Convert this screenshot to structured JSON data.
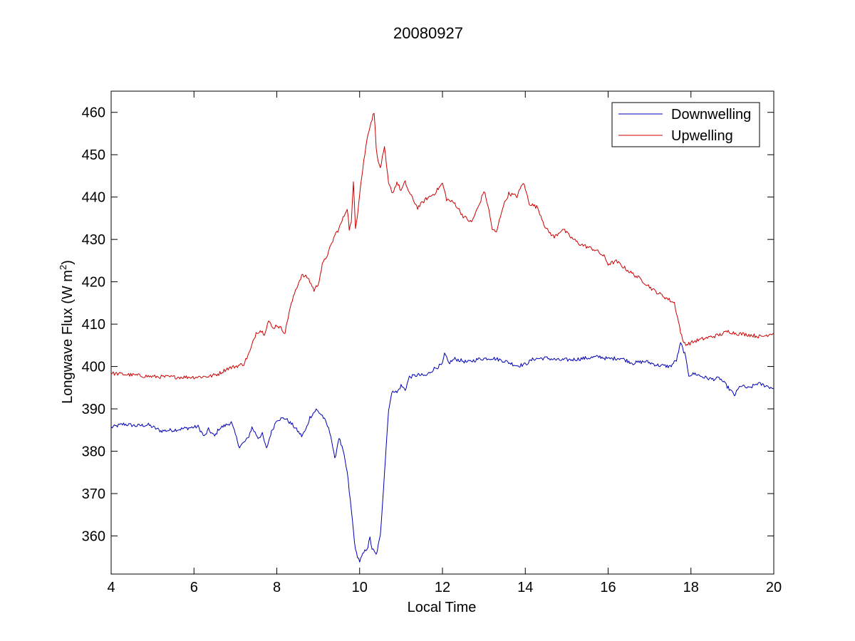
{
  "chart_data": {
    "type": "line",
    "title": "20080927",
    "xlabel": "Local Time",
    "ylabel": "Longwave Flux (W m",
    "ylabel_superscript": "2",
    "ylabel_suffix": ")",
    "xlim": [
      4,
      20
    ],
    "ylim": [
      351,
      465
    ],
    "xticks": [
      4,
      6,
      8,
      10,
      12,
      14,
      16,
      18,
      20
    ],
    "yticks": [
      360,
      370,
      380,
      390,
      400,
      410,
      420,
      430,
      440,
      450,
      460
    ],
    "grid": false,
    "legend_position": "top-right",
    "series": [
      {
        "name": "Downwelling",
        "color": "#0000b4",
        "points": [
          [
            4.0,
            385.6
          ],
          [
            4.3,
            386.4
          ],
          [
            4.6,
            386.0
          ],
          [
            4.9,
            386.2
          ],
          [
            5.2,
            384.8
          ],
          [
            5.5,
            385.0
          ],
          [
            5.8,
            385.4
          ],
          [
            6.1,
            385.8
          ],
          [
            6.25,
            383.4
          ],
          [
            6.35,
            385.1
          ],
          [
            6.5,
            383.5
          ],
          [
            6.6,
            385.3
          ],
          [
            6.9,
            386.8
          ],
          [
            7.1,
            381.0
          ],
          [
            7.3,
            383.0
          ],
          [
            7.4,
            385.6
          ],
          [
            7.55,
            383.2
          ],
          [
            7.65,
            384.0
          ],
          [
            7.75,
            380.5
          ],
          [
            7.85,
            384.0
          ],
          [
            8.0,
            387.5
          ],
          [
            8.2,
            387.8
          ],
          [
            8.4,
            386.0
          ],
          [
            8.6,
            383.6
          ],
          [
            8.7,
            385.0
          ],
          [
            8.8,
            388.0
          ],
          [
            8.95,
            389.8
          ],
          [
            9.1,
            388.4
          ],
          [
            9.2,
            386.5
          ],
          [
            9.3,
            384.0
          ],
          [
            9.4,
            378.0
          ],
          [
            9.5,
            383.3
          ],
          [
            9.6,
            380.0
          ],
          [
            9.7,
            375.0
          ],
          [
            9.8,
            366.0
          ],
          [
            9.9,
            356.5
          ],
          [
            10.0,
            354.0
          ],
          [
            10.1,
            356.0
          ],
          [
            10.2,
            357.5
          ],
          [
            10.25,
            359.5
          ],
          [
            10.3,
            357.0
          ],
          [
            10.4,
            355.5
          ],
          [
            10.5,
            360.0
          ],
          [
            10.6,
            375.0
          ],
          [
            10.7,
            390.0
          ],
          [
            10.8,
            394.5
          ],
          [
            10.9,
            393.8
          ],
          [
            11.0,
            395.5
          ],
          [
            11.1,
            394.5
          ],
          [
            11.2,
            397.5
          ],
          [
            11.4,
            398.0
          ],
          [
            11.6,
            397.8
          ],
          [
            11.8,
            399.5
          ],
          [
            12.0,
            400.5
          ],
          [
            12.05,
            403.0
          ],
          [
            12.15,
            400.8
          ],
          [
            12.3,
            401.8
          ],
          [
            12.6,
            401.0
          ],
          [
            12.9,
            401.8
          ],
          [
            13.2,
            402.0
          ],
          [
            13.5,
            401.3
          ],
          [
            13.8,
            400.2
          ],
          [
            14.0,
            400.5
          ],
          [
            14.2,
            401.8
          ],
          [
            14.5,
            402.0
          ],
          [
            14.8,
            401.5
          ],
          [
            15.1,
            401.6
          ],
          [
            15.5,
            402.0
          ],
          [
            15.8,
            402.3
          ],
          [
            16.0,
            401.8
          ],
          [
            16.3,
            402.0
          ],
          [
            16.6,
            400.8
          ],
          [
            16.9,
            401.2
          ],
          [
            17.2,
            400.3
          ],
          [
            17.5,
            400.0
          ],
          [
            17.65,
            401.5
          ],
          [
            17.75,
            405.5
          ],
          [
            17.85,
            403.0
          ],
          [
            17.95,
            398.0
          ],
          [
            18.1,
            398.3
          ],
          [
            18.3,
            397.5
          ],
          [
            18.5,
            397.0
          ],
          [
            18.7,
            397.2
          ],
          [
            18.9,
            395.0
          ],
          [
            19.05,
            393.2
          ],
          [
            19.2,
            395.5
          ],
          [
            19.4,
            394.8
          ],
          [
            19.6,
            396.0
          ],
          [
            19.8,
            395.5
          ],
          [
            20.0,
            394.8
          ]
        ]
      },
      {
        "name": "Upwelling",
        "color": "#cc0000",
        "points": [
          [
            4.0,
            398.4
          ],
          [
            4.5,
            398.0
          ],
          [
            5.0,
            397.6
          ],
          [
            5.5,
            397.5
          ],
          [
            6.0,
            397.5
          ],
          [
            6.4,
            397.7
          ],
          [
            6.6,
            398.3
          ],
          [
            6.8,
            399.5
          ],
          [
            7.0,
            400.0
          ],
          [
            7.2,
            400.6
          ],
          [
            7.35,
            403.5
          ],
          [
            7.5,
            408.0
          ],
          [
            7.6,
            408.5
          ],
          [
            7.7,
            407.8
          ],
          [
            7.8,
            410.8
          ],
          [
            7.9,
            409.0
          ],
          [
            8.0,
            409.8
          ],
          [
            8.1,
            409.0
          ],
          [
            8.2,
            408.0
          ],
          [
            8.3,
            413.0
          ],
          [
            8.45,
            418.0
          ],
          [
            8.6,
            421.5
          ],
          [
            8.75,
            421.0
          ],
          [
            8.9,
            418.0
          ],
          [
            9.0,
            419.5
          ],
          [
            9.1,
            424.0
          ],
          [
            9.25,
            427.0
          ],
          [
            9.4,
            431.0
          ],
          [
            9.5,
            432.5
          ],
          [
            9.6,
            435.0
          ],
          [
            9.7,
            437.5
          ],
          [
            9.75,
            432.5
          ],
          [
            9.8,
            434.0
          ],
          [
            9.85,
            443.5
          ],
          [
            9.9,
            433.0
          ],
          [
            9.95,
            436.0
          ],
          [
            10.0,
            441.0
          ],
          [
            10.1,
            448.5
          ],
          [
            10.2,
            455.0
          ],
          [
            10.3,
            458.5
          ],
          [
            10.35,
            460.0
          ],
          [
            10.4,
            452.0
          ],
          [
            10.45,
            448.0
          ],
          [
            10.5,
            447.0
          ],
          [
            10.6,
            451.5
          ],
          [
            10.7,
            443.0
          ],
          [
            10.8,
            441.0
          ],
          [
            10.9,
            443.5
          ],
          [
            11.0,
            441.5
          ],
          [
            11.1,
            443.5
          ],
          [
            11.2,
            441.0
          ],
          [
            11.4,
            437.5
          ],
          [
            11.6,
            439.5
          ],
          [
            11.8,
            440.8
          ],
          [
            12.0,
            443.2
          ],
          [
            12.1,
            439.5
          ],
          [
            12.3,
            438.5
          ],
          [
            12.5,
            435.5
          ],
          [
            12.7,
            434.0
          ],
          [
            12.9,
            438.5
          ],
          [
            13.0,
            441.5
          ],
          [
            13.1,
            438.0
          ],
          [
            13.2,
            432.5
          ],
          [
            13.3,
            431.5
          ],
          [
            13.45,
            437.5
          ],
          [
            13.6,
            440.8
          ],
          [
            13.8,
            440.2
          ],
          [
            13.95,
            443.5
          ],
          [
            14.1,
            438.5
          ],
          [
            14.3,
            437.5
          ],
          [
            14.5,
            432.5
          ],
          [
            14.7,
            430.5
          ],
          [
            14.9,
            432.5
          ],
          [
            15.1,
            430.5
          ],
          [
            15.3,
            429.0
          ],
          [
            15.5,
            428.2
          ],
          [
            15.7,
            427.5
          ],
          [
            15.9,
            426.0
          ],
          [
            16.0,
            424.2
          ],
          [
            16.2,
            424.8
          ],
          [
            16.5,
            422.5
          ],
          [
            16.8,
            420.5
          ],
          [
            17.1,
            418.0
          ],
          [
            17.4,
            416.2
          ],
          [
            17.6,
            415.0
          ],
          [
            17.7,
            410.5
          ],
          [
            17.8,
            406.0
          ],
          [
            17.9,
            405.2
          ],
          [
            18.1,
            406.0
          ],
          [
            18.4,
            406.8
          ],
          [
            18.7,
            407.5
          ],
          [
            18.9,
            408.3
          ],
          [
            19.1,
            407.8
          ],
          [
            19.4,
            407.5
          ],
          [
            19.7,
            407.0
          ],
          [
            20.0,
            408.0
          ]
        ]
      }
    ]
  }
}
